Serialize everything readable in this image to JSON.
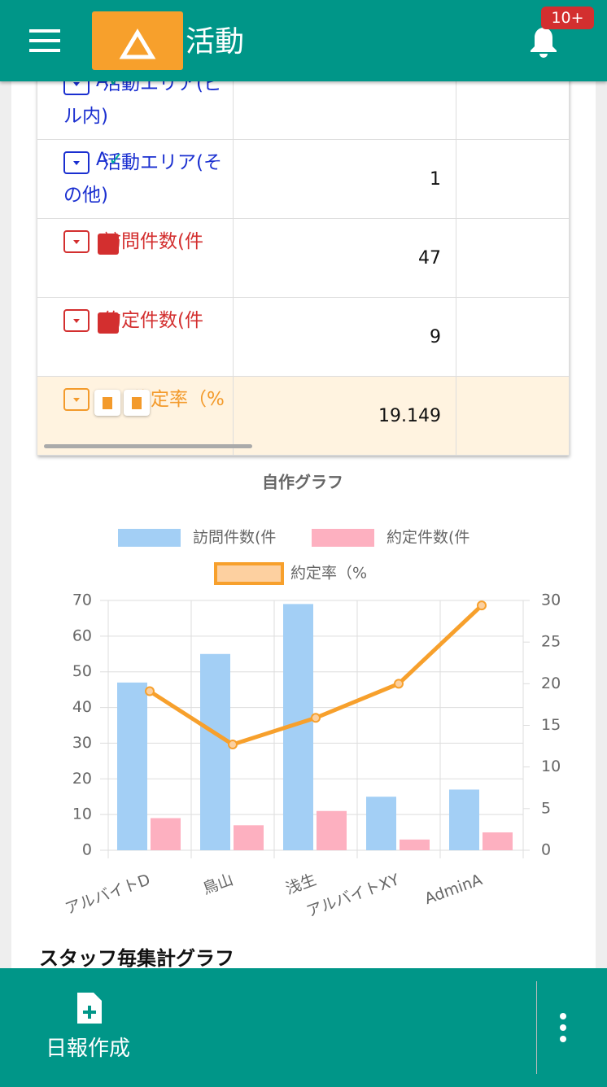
{
  "header": {
    "title": "活動",
    "badge": "10+"
  },
  "table": {
    "rows": [
      {
        "label": "活動エリア(ビル内)",
        "color": "#1a2fd0"
      },
      {
        "label": "活動エリア(その他)",
        "value": 1,
        "color": "#1a2fd0"
      },
      {
        "label": "訪問件数(件",
        "value": 47,
        "color": "#d32f2f"
      },
      {
        "label": "約定件数(件",
        "value": 9,
        "color": "#d32f2f"
      },
      {
        "label": "約定率（%",
        "value": 19.149,
        "color": "#f39a2b"
      }
    ]
  },
  "chart_data": {
    "type": "bar",
    "title": "自作グラフ",
    "categories": [
      "アルバイトD",
      "鳥山",
      "浅生",
      "アルバイトXY",
      "AdminA"
    ],
    "series": [
      {
        "name": "訪問件数(件",
        "color": "#a3cff5",
        "values": [
          47,
          55,
          69,
          15,
          17
        ]
      },
      {
        "name": "約定件数(件",
        "color": "#fdb0c0",
        "values": [
          9,
          7,
          11,
          3,
          5
        ]
      },
      {
        "name": "約定率（%",
        "color": "#f7a02c",
        "type": "line",
        "axis": "y2",
        "values": [
          19.1,
          12.7,
          15.9,
          20,
          29.4
        ]
      }
    ],
    "ylim": [
      0,
      70
    ],
    "yticks": [
      0,
      10,
      20,
      30,
      40,
      50,
      60,
      70
    ],
    "y2lim": [
      0,
      30
    ],
    "y2ticks": [
      0,
      5,
      10,
      15,
      20,
      25,
      30
    ],
    "grid": true
  },
  "section": {
    "title": "スタッフ毎集計グラフ"
  },
  "footer": {
    "button": "日報作成"
  }
}
